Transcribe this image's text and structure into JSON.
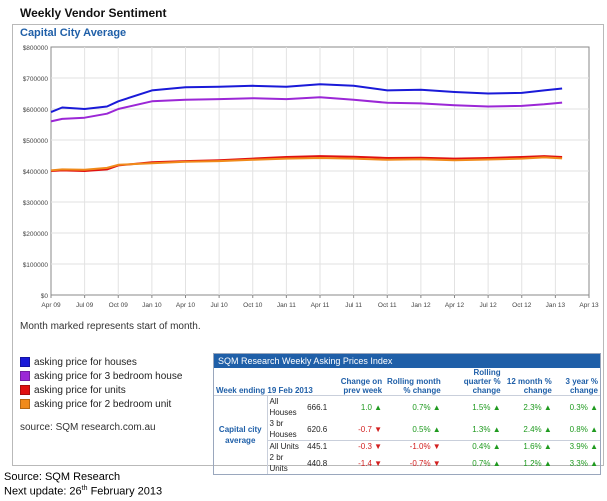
{
  "page": {
    "title": "Weekly Vendor Sentiment"
  },
  "chart_data": {
    "type": "line",
    "title": "Capital City Average",
    "ylim": [
      0,
      800000
    ],
    "y_ticks": [
      "$0",
      "$100000",
      "$200000",
      "$300000",
      "$400000",
      "$500000",
      "$600000",
      "$700000",
      "$800000"
    ],
    "x_ticks": [
      "Apr 09",
      "Jul 09",
      "Oct 09",
      "Jan 10",
      "Apr 10",
      "Jul 10",
      "Oct 10",
      "Jan 11",
      "Apr 11",
      "Jul 11",
      "Oct 11",
      "Jan 12",
      "Apr 12",
      "Jul 12",
      "Oct 12",
      "Jan 13",
      "Apr 13"
    ],
    "x_range": [
      0,
      48
    ],
    "grid": true,
    "note": "Month marked represents start of month.",
    "series": [
      {
        "name": "asking price for houses",
        "color": "#1a1ad8",
        "x": [
          0,
          1,
          3,
          5,
          6,
          9,
          12,
          15,
          18,
          21,
          24,
          27,
          30,
          33,
          36,
          39,
          42,
          44,
          45.6
        ],
        "values": [
          590000,
          605000,
          600000,
          608000,
          625000,
          660000,
          670000,
          672000,
          675000,
          672000,
          680000,
          675000,
          660000,
          662000,
          655000,
          650000,
          652000,
          660000,
          666100
        ]
      },
      {
        "name": "asking price for 3 bedroom house",
        "color": "#9b27d6",
        "x": [
          0,
          1,
          3,
          5,
          6,
          9,
          12,
          15,
          18,
          21,
          24,
          27,
          30,
          33,
          36,
          39,
          42,
          44,
          45.6
        ],
        "values": [
          560000,
          568000,
          572000,
          585000,
          600000,
          625000,
          630000,
          632000,
          635000,
          632000,
          638000,
          630000,
          620000,
          618000,
          612000,
          608000,
          610000,
          615000,
          620600
        ]
      },
      {
        "name": "asking price for units",
        "color": "#e01010",
        "x": [
          0,
          1,
          3,
          5,
          6,
          9,
          12,
          15,
          18,
          21,
          24,
          27,
          30,
          33,
          36,
          39,
          42,
          44,
          45.6
        ],
        "values": [
          400000,
          402000,
          400000,
          405000,
          418000,
          428000,
          432000,
          435000,
          440000,
          445000,
          448000,
          446000,
          442000,
          443000,
          440000,
          442000,
          445000,
          448000,
          445100
        ]
      },
      {
        "name": "asking price for 2 bedroom unit",
        "color": "#f08a1a",
        "x": [
          0,
          1,
          3,
          5,
          6,
          9,
          12,
          15,
          18,
          21,
          24,
          27,
          30,
          33,
          36,
          39,
          42,
          44,
          45.6
        ],
        "values": [
          402000,
          405000,
          404000,
          410000,
          420000,
          425000,
          430000,
          432000,
          436000,
          440000,
          442000,
          440000,
          436000,
          438000,
          435000,
          437000,
          440000,
          444000,
          440800
        ]
      }
    ]
  },
  "legend": {
    "items": [
      {
        "label": "asking price for houses",
        "color": "#1a1ad8"
      },
      {
        "label": "asking price for 3 bedroom house",
        "color": "#9b27d6"
      },
      {
        "label": "asking price for units",
        "color": "#e01010"
      },
      {
        "label": "asking price for 2 bedroom unit",
        "color": "#f08a1a"
      }
    ],
    "source": "source: SQM research.com.au"
  },
  "index_table": {
    "title": "SQM Research Weekly Asking Prices Index",
    "week_label": "Week ending 19 Feb 2013",
    "headers": [
      "Change on prev week",
      "Rolling month % change",
      "Rolling quarter % change",
      "12 month % change",
      "3 year % change"
    ],
    "group": "Capital city average",
    "rows": [
      {
        "type": "All Houses",
        "value": "666.1",
        "cells": [
          {
            "v": "1.0",
            "d": "up"
          },
          {
            "v": "0.7%",
            "d": "up"
          },
          {
            "v": "1.5%",
            "d": "up"
          },
          {
            "v": "2.3%",
            "d": "up"
          },
          {
            "v": "0.3%",
            "d": "up"
          }
        ]
      },
      {
        "type": "3 br Houses",
        "value": "620.6",
        "cells": [
          {
            "v": "-0.7",
            "d": "down"
          },
          {
            "v": "0.5%",
            "d": "up"
          },
          {
            "v": "1.3%",
            "d": "up"
          },
          {
            "v": "2.4%",
            "d": "up"
          },
          {
            "v": "0.8%",
            "d": "up"
          }
        ]
      },
      {
        "type": "All Units",
        "value": "445.1",
        "cells": [
          {
            "v": "-0.3",
            "d": "down"
          },
          {
            "v": "-1.0%",
            "d": "down"
          },
          {
            "v": "0.4%",
            "d": "up"
          },
          {
            "v": "1.6%",
            "d": "up"
          },
          {
            "v": "3.9%",
            "d": "up"
          }
        ]
      },
      {
        "type": "2 br Units",
        "value": "440.8",
        "cells": [
          {
            "v": "-1.4",
            "d": "down"
          },
          {
            "v": "-0.7%",
            "d": "down"
          },
          {
            "v": "0.7%",
            "d": "up"
          },
          {
            "v": "1.2%",
            "d": "up"
          },
          {
            "v": "3.3%",
            "d": "up"
          }
        ]
      }
    ]
  },
  "footer": {
    "source": "Source: SQM Research",
    "next_update_prefix": "Next update: 26",
    "next_update_sup": "th",
    "next_update_suffix": " February 2013"
  }
}
